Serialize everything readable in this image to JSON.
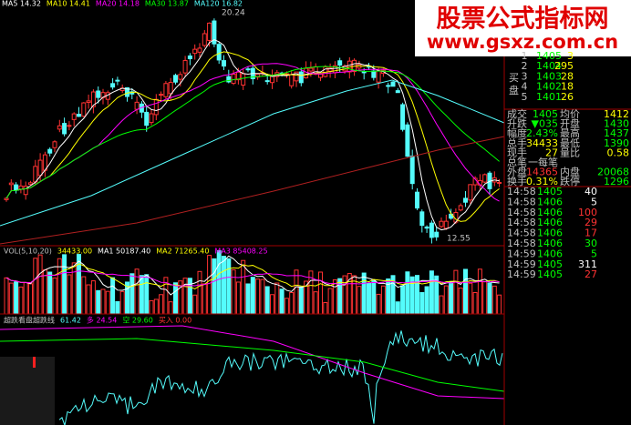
{
  "watermark": {
    "title": "股票公式指标网",
    "url": "www.gsxz.com.cn"
  },
  "main_legend": [
    {
      "text": "MA5 14.32",
      "color": "#ffffff"
    },
    {
      "text": "MA10 14.41",
      "color": "#ffff00"
    },
    {
      "text": "MA20 14.18",
      "color": "#ff00ff"
    },
    {
      "text": "MA30 13.87",
      "color": "#00ff00"
    },
    {
      "text": "MA120 16.82",
      "color": "#54fcfc"
    }
  ],
  "annotations": {
    "high": "20.24",
    "low": "12.55"
  },
  "order_book": {
    "side_label": [
      "买",
      "盘"
    ],
    "buy": [
      {
        "level": "1",
        "price": "1405",
        "volume": "3"
      },
      {
        "level": "2",
        "price": "1404",
        "volume": "295"
      },
      {
        "level": "3",
        "price": "1403",
        "volume": "28"
      },
      {
        "level": "4",
        "price": "1402",
        "volume": "18"
      },
      {
        "level": "5",
        "price": "1401",
        "volume": "26"
      }
    ]
  },
  "quote": [
    {
      "label": "成交",
      "value": "1405",
      "color": "#00ff00",
      "label2": "均价",
      "value2": "1412",
      "color2": "#ffff00"
    },
    {
      "label": "升跌",
      "value": "▼035",
      "color": "#00ff00",
      "label2": "开盘",
      "value2": "1430",
      "color2": "#00ff00"
    },
    {
      "label": "幅度",
      "value": "2.43%",
      "color": "#00ff00",
      "label2": "最高",
      "value2": "1437",
      "color2": "#00ff00"
    },
    {
      "label": "总手",
      "value": "34433",
      "color": "#ffff00",
      "label2": "最低",
      "value2": "1390",
      "color2": "#00ff00"
    },
    {
      "label": "现手",
      "value": "27",
      "color": "#ffff00",
      "label2": "量比",
      "value2": "0.58",
      "color2": "#ffff00"
    },
    {
      "label": "总笔",
      "value": "一每笔",
      "color": "#c0c0c0",
      "label2": "",
      "value2": "",
      "color2": "#c0c0c0"
    },
    {
      "label": "外盘",
      "value": "14365",
      "color": "#ff3232",
      "label2": "内盘",
      "value2": "20068",
      "color2": "#00ff00"
    },
    {
      "label": "换手",
      "value": "0.31%",
      "color": "#ffff00",
      "label2": "跌停",
      "value2": "1296",
      "color2": "#00ff00"
    }
  ],
  "trades": [
    {
      "time": "14:58",
      "price": "1405",
      "volume": "40",
      "color": "#ffffff"
    },
    {
      "time": "14:58",
      "price": "1406",
      "volume": "5",
      "color": "#ffffff"
    },
    {
      "time": "14:58",
      "price": "1406",
      "volume": "100",
      "color": "#ff3232"
    },
    {
      "time": "14:58",
      "price": "1406",
      "volume": "29",
      "color": "#ff3232"
    },
    {
      "time": "14:58",
      "price": "1406",
      "volume": "17",
      "color": "#ff3232"
    },
    {
      "time": "14:58",
      "price": "1406",
      "volume": "30",
      "color": "#00ff00"
    },
    {
      "time": "14:59",
      "price": "1406",
      "volume": "5",
      "color": "#00ff00"
    },
    {
      "time": "14:59",
      "price": "1405",
      "volume": "311",
      "color": "#ffffff"
    },
    {
      "time": "14:59",
      "price": "1405",
      "volume": "27",
      "color": "#ff3232"
    }
  ],
  "volume_legend": [
    {
      "text": "VOL(5,10,20)",
      "color": "#c0c0c0"
    },
    {
      "text": "34433.00",
      "color": "#ffff00"
    },
    {
      "text": "MA1 50187.40",
      "color": "#ffffff"
    },
    {
      "text": "MA2 71265.40",
      "color": "#ffff00"
    },
    {
      "text": "MA3 85408.25",
      "color": "#ff00ff"
    }
  ],
  "indicator_legend": [
    {
      "text": "超跌看盘超跌线",
      "color": "#c0c0c0"
    },
    {
      "text": "61.42",
      "color": "#54fcfc"
    },
    {
      "text": "多 24.54",
      "color": "#ff00ff"
    },
    {
      "text": "空 29.60",
      "color": "#00ff00"
    },
    {
      "text": "买入 0.00",
      "color": "#ff3232"
    }
  ]
}
